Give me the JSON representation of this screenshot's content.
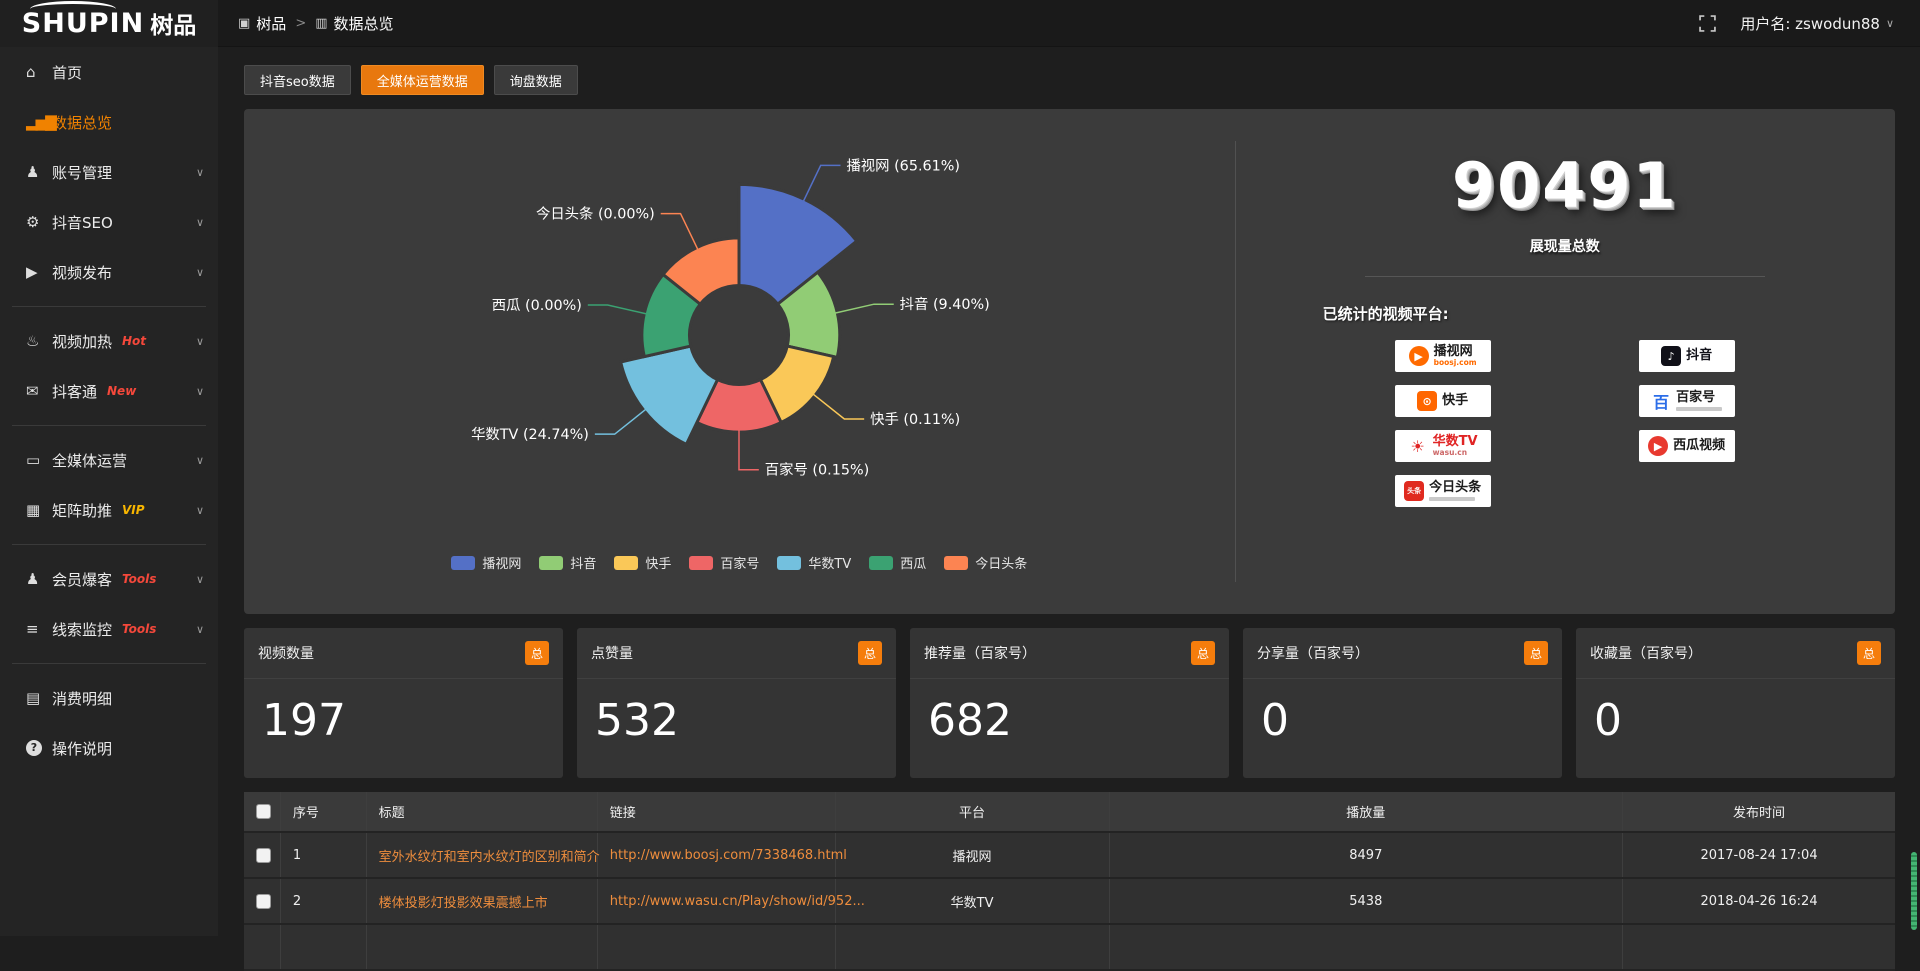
{
  "header": {
    "logo_latin": "SHUPIN",
    "logo_cjk": "树品",
    "breadcrumb": [
      {
        "glyph": "▣",
        "label": "树品",
        "icon": "app-icon"
      },
      {
        "glyph": "▥",
        "label": "数据总览",
        "icon": "chart-icon"
      }
    ],
    "breadcrumb_sep": ">",
    "username": "用户名: zswodun88",
    "user_chevron": "∨"
  },
  "sidebar": {
    "chevron_glyph": "∨",
    "items": [
      {
        "label": "首页",
        "glyph": "⌂",
        "icon": "home"
      },
      {
        "label": "数据总览",
        "glyph": "▂▅▇",
        "icon": "bar-chart",
        "active": true
      },
      {
        "label": "账号管理",
        "glyph": "♟",
        "icon": "user",
        "chevron": true
      },
      {
        "label": "抖音SEO",
        "glyph": "⚙",
        "icon": "gear",
        "chevron": true
      },
      {
        "label": "视频发布",
        "glyph": "▶",
        "icon": "video-publish",
        "chevron": true
      },
      {
        "divider": true
      },
      {
        "label": "视频加热",
        "glyph": "♨",
        "icon": "video-heat",
        "badge": "Hot",
        "badgeColor": "#f5483b",
        "chevron": true
      },
      {
        "label": "抖客通",
        "glyph": "✉",
        "icon": "message",
        "badge": "New",
        "badgeColor": "#f5483b",
        "chevron": true
      },
      {
        "divider": true
      },
      {
        "label": "全媒体运营",
        "glyph": "▭",
        "icon": "monitor",
        "chevron": true
      },
      {
        "label": "矩阵助推",
        "glyph": "▦",
        "icon": "grid",
        "badge": "VIP",
        "badgeColor": "#f7b500",
        "chevron": true
      },
      {
        "divider": true
      },
      {
        "label": "会员爆客",
        "glyph": "♟",
        "icon": "member",
        "badge": "Tools",
        "badgeColor": "#f5483b",
        "chevron": true
      },
      {
        "label": "线索监控",
        "glyph": "≡",
        "icon": "monitor-leads",
        "badge": "Tools",
        "badgeColor": "#f5483b",
        "chevron": true
      },
      {
        "divider": true
      },
      {
        "label": "消费明细",
        "glyph": "▤",
        "icon": "wallet"
      },
      {
        "label": "操作说明",
        "glyph": "?",
        "icon": "help",
        "circle": true
      }
    ]
  },
  "tabs": [
    {
      "label": "抖音seo数据",
      "active": false
    },
    {
      "label": "全媒体运营数据",
      "active": true
    },
    {
      "label": "询盘数据",
      "active": false
    }
  ],
  "chart_data": {
    "type": "pie",
    "variant": "rose",
    "legend_position": "bottom",
    "series": [
      {
        "name": "播视网",
        "value": 65.61,
        "label": "播视网 (65.61%)",
        "color": "#5470c6"
      },
      {
        "name": "抖音",
        "value": 9.4,
        "label": "抖音 (9.40%)",
        "color": "#91cc75"
      },
      {
        "name": "快手",
        "value": 0.11,
        "label": "快手 (0.11%)",
        "color": "#fac858"
      },
      {
        "name": "百家号",
        "value": 0.15,
        "label": "百家号 (0.15%)",
        "color": "#ee6666"
      },
      {
        "name": "华数TV",
        "value": 24.74,
        "label": "华数TV (24.74%)",
        "color": "#73c0de"
      },
      {
        "name": "西瓜",
        "value": 0.0,
        "label": "西瓜 (0.00%)",
        "color": "#3ba272"
      },
      {
        "name": "今日头条",
        "value": 0.0,
        "label": "今日头条 (0.00%)",
        "color": "#fc8452"
      }
    ]
  },
  "summary": {
    "total_value": "90491",
    "total_label": "展现量总数",
    "platforms_label": "已统计的视频平台:",
    "platforms": [
      {
        "name": "播视网",
        "caption": "boosj.com",
        "mark": "▶",
        "markBg": "#ff6a00",
        "markColor": "#fff",
        "markRound": true,
        "nameColor": "#1c1c1c",
        "captionColor": "#ff6a00"
      },
      {
        "name": "抖音",
        "mark": "♪",
        "markBg": "#101018",
        "markColor": "#fff",
        "nameColor": "#101018"
      },
      {
        "name": "快手",
        "mark": "⊙",
        "markBg": "#ff6600",
        "markColor": "#fff",
        "nameColor": "#1c1c1c"
      },
      {
        "name": "百家号",
        "mark": "百",
        "markBg": "transparent",
        "markColor": "#2b6de8",
        "nameColor": "#1c1c1c",
        "capbar": true
      },
      {
        "name": "华数TV",
        "caption": "wasu.cn",
        "mark": "☀",
        "markBg": "transparent",
        "markColor": "#e02424",
        "nameColor": "#e02424",
        "captionColor": "#c66"
      },
      {
        "name": "西瓜视频",
        "mark": "▶",
        "markBg": "#e8392f",
        "markColor": "#fff",
        "markRound": true,
        "nameColor": "#1c1c1c"
      },
      {
        "name": "今日头条",
        "mark": "头条",
        "markBg": "#e02a1f",
        "markColor": "#fff",
        "markSmall": true,
        "nameColor": "#1c1c1c",
        "capbar": true
      }
    ]
  },
  "stat_cards": [
    {
      "title": "视频数量",
      "badge": "总",
      "value": "197"
    },
    {
      "title": "点赞量",
      "badge": "总",
      "value": "532"
    },
    {
      "title": "推荐量（百家号）",
      "badge": "总",
      "value": "682"
    },
    {
      "title": "分享量（百家号）",
      "badge": "总",
      "value": "0"
    },
    {
      "title": "收藏量（百家号）",
      "badge": "总",
      "value": "0"
    }
  ],
  "table": {
    "headers": [
      "序号",
      "标题",
      "链接",
      "平台",
      "播放量",
      "发布时间"
    ],
    "rows": [
      {
        "no": "1",
        "title": "室外水纹灯和室内水纹灯的区别和简介",
        "link": "http://www.boosj.com/7338468.html",
        "platform": "播视网",
        "plays": "8497",
        "time": "2017-08-24 17:04"
      },
      {
        "no": "2",
        "title": "楼体投影灯投影效果震撼上市",
        "link": "http://www.wasu.cn/Play/show/id/952...",
        "platform": "华数TV",
        "plays": "5438",
        "time": "2018-04-26 16:24"
      },
      {
        "no": "",
        "title": "",
        "link": "",
        "platform": "",
        "plays": "",
        "time": "",
        "partial": true
      }
    ]
  }
}
